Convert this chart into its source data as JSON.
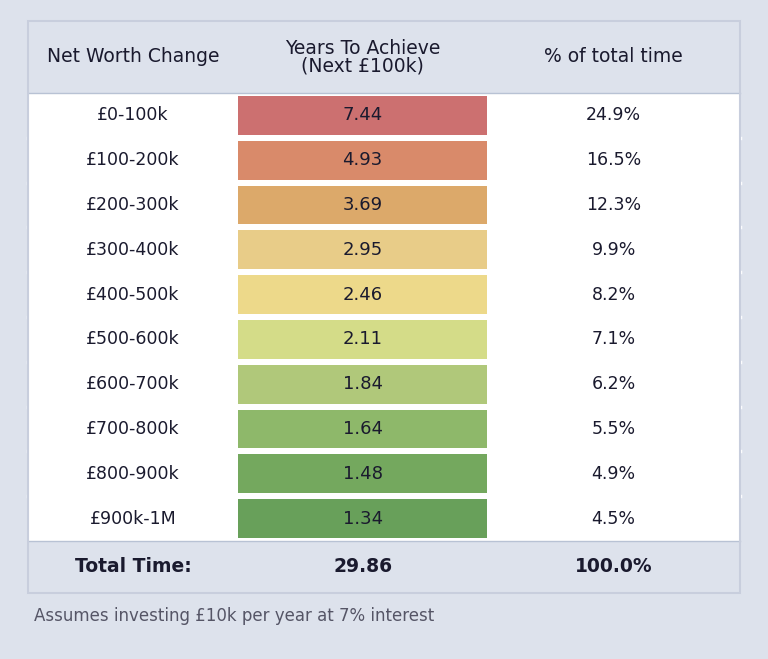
{
  "col1_header": "Net Worth Change",
  "col2_header_line1": "Years To Achieve",
  "col2_header_line2": "(Next £100k)",
  "col3_header": "% of total time",
  "rows": [
    {
      "label": "£0-100k",
      "years": "7.44",
      "pct": "24.9%",
      "color": "#cc7070"
    },
    {
      "label": "£100-200k",
      "years": "4.93",
      "pct": "16.5%",
      "color": "#d98a6a"
    },
    {
      "label": "£200-300k",
      "years": "3.69",
      "pct": "12.3%",
      "color": "#dca96a"
    },
    {
      "label": "£300-400k",
      "years": "2.95",
      "pct": "9.9%",
      "color": "#e8cc88"
    },
    {
      "label": "£400-500k",
      "years": "2.46",
      "pct": "8.2%",
      "color": "#edd98a"
    },
    {
      "label": "£500-600k",
      "years": "2.11",
      "pct": "7.1%",
      "color": "#d4dc88"
    },
    {
      "label": "£600-700k",
      "years": "1.84",
      "pct": "6.2%",
      "color": "#b0c87a"
    },
    {
      "label": "£700-800k",
      "years": "1.64",
      "pct": "5.5%",
      "color": "#8eb86a"
    },
    {
      "label": "£800-900k",
      "years": "1.48",
      "pct": "4.9%",
      "color": "#74a85e"
    },
    {
      "label": "£900k-1M",
      "years": "1.34",
      "pct": "4.5%",
      "color": "#68a05a"
    }
  ],
  "total_label": "Total Time:",
  "total_years": "29.86",
  "total_pct": "100.0%",
  "footnote": "Assumes investing £10k per year at 7% interest",
  "bg_color": "#dde2ec",
  "table_bg": "#ffffff",
  "footer_bg": "#dde2ec",
  "text_color": "#1a1a2e",
  "separator_color": "#ffffff",
  "border_color": "#c8cedd"
}
